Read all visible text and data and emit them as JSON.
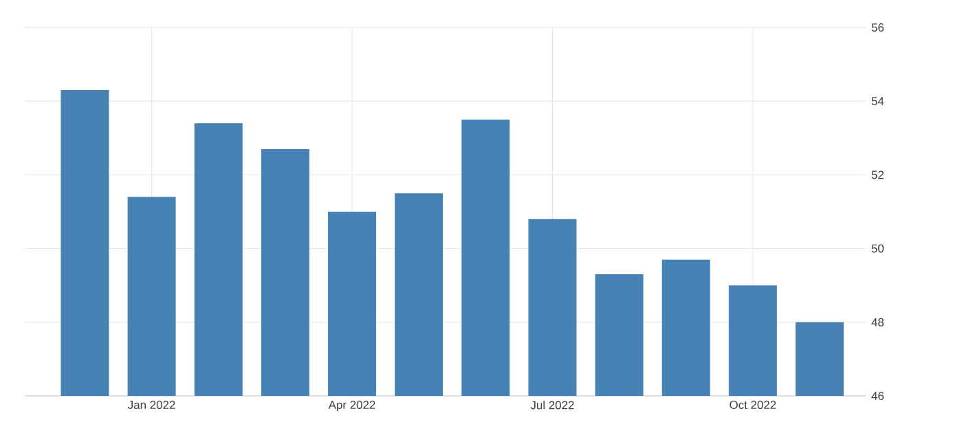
{
  "chart_data": {
    "type": "bar",
    "categories": [
      null,
      "Jan 2022",
      null,
      null,
      "Apr 2022",
      null,
      null,
      "Jul 2022",
      null,
      null,
      "Oct 2022",
      null
    ],
    "values": [
      54.3,
      51.4,
      53.4,
      52.7,
      51.0,
      51.5,
      53.5,
      50.8,
      49.3,
      49.7,
      49.0,
      48.0
    ],
    "color": "#4682b4",
    "ylim": [
      46,
      56
    ],
    "yticks": [
      46,
      48,
      50,
      52,
      54,
      56
    ],
    "grid": true
  }
}
